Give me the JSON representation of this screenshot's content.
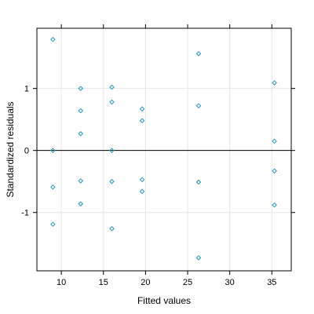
{
  "chart_data": {
    "type": "scatter",
    "title": "",
    "xlabel": "Fitted values",
    "ylabel": "Standardized residuals",
    "xlim": [
      7.1,
      37.3
    ],
    "ylim": [
      -1.94,
      1.97
    ],
    "x_ticks": [
      10,
      15,
      20,
      25,
      30,
      35
    ],
    "y_ticks": [
      -1,
      0,
      1
    ],
    "x_tick_labels": [
      "10",
      "15",
      "20",
      "25",
      "30",
      "35"
    ],
    "y_tick_labels": [
      "-1",
      "0",
      "1"
    ],
    "grid": true,
    "reference_line_y": 0,
    "point_color": "#1f9bbf",
    "grid_color": "#e6e6e6",
    "points": [
      {
        "x": 9.0,
        "y": 1.79
      },
      {
        "x": 9.0,
        "y": 0.0
      },
      {
        "x": 9.0,
        "y": -0.59
      },
      {
        "x": 9.0,
        "y": -1.19
      },
      {
        "x": 12.3,
        "y": 1.0
      },
      {
        "x": 12.3,
        "y": 0.64
      },
      {
        "x": 12.3,
        "y": 0.27
      },
      {
        "x": 12.3,
        "y": -0.49
      },
      {
        "x": 12.3,
        "y": -0.86
      },
      {
        "x": 16.0,
        "y": 1.02
      },
      {
        "x": 16.0,
        "y": 0.78
      },
      {
        "x": 16.0,
        "y": 0.0
      },
      {
        "x": 16.0,
        "y": -0.5
      },
      {
        "x": 16.0,
        "y": -1.26
      },
      {
        "x": 19.6,
        "y": 0.67
      },
      {
        "x": 19.6,
        "y": 0.48
      },
      {
        "x": 19.6,
        "y": -0.47
      },
      {
        "x": 19.6,
        "y": -0.66
      },
      {
        "x": 26.3,
        "y": 1.56
      },
      {
        "x": 26.3,
        "y": 0.72
      },
      {
        "x": 26.3,
        "y": -0.51
      },
      {
        "x": 26.3,
        "y": -1.73
      },
      {
        "x": 35.3,
        "y": 1.09
      },
      {
        "x": 35.3,
        "y": 0.15
      },
      {
        "x": 35.3,
        "y": -0.33
      },
      {
        "x": 35.3,
        "y": -0.88
      }
    ]
  }
}
